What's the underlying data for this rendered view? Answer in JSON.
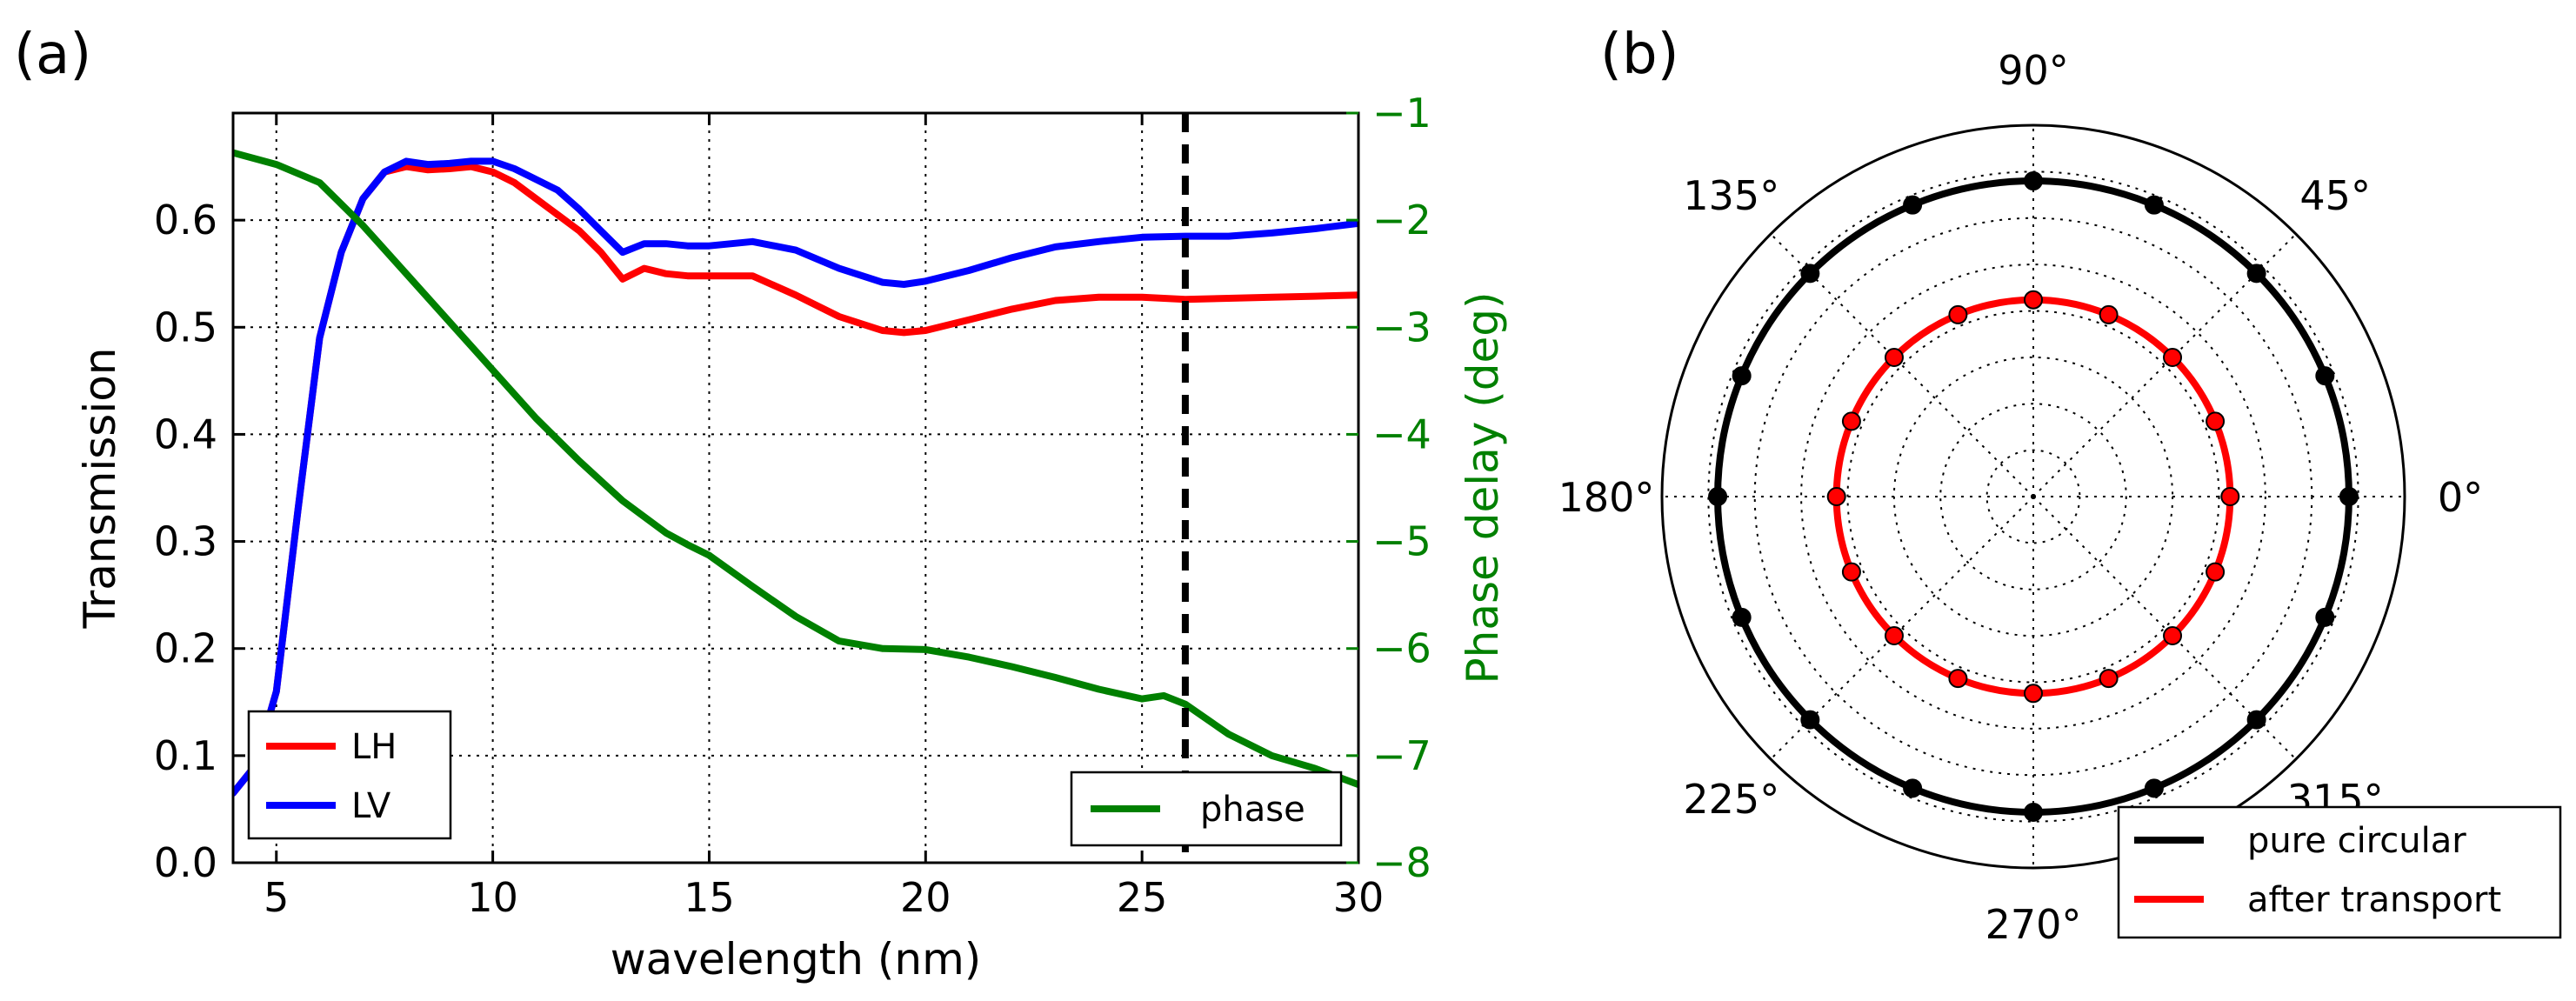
{
  "figure": {
    "panel_a_label": "(a)",
    "panel_b_label": "(b)"
  },
  "colors": {
    "lh": "#ff0000",
    "lv": "#0000ff",
    "phase": "#008000",
    "circular": "#000000",
    "transport": "#ff0000",
    "marker_stroke": "#000000"
  },
  "chart_data": [
    {
      "type": "line",
      "title": "(a)",
      "xlabel": "wavelength (nm)",
      "ylabel": "Transmission",
      "y2label": "Phase delay (deg)",
      "xlim": [
        4,
        30
      ],
      "ylim": [
        0,
        0.7
      ],
      "y2lim": [
        -8,
        -1
      ],
      "xticks": [
        5,
        10,
        15,
        20,
        25,
        30
      ],
      "xtick_labels": [
        "5",
        "10",
        "15",
        "20",
        "25",
        "30"
      ],
      "yticks": [
        0.0,
        0.1,
        0.2,
        0.3,
        0.4,
        0.5,
        0.6
      ],
      "ytick_labels": [
        "0.0",
        "0.1",
        "0.2",
        "0.3",
        "0.4",
        "0.5",
        "0.6"
      ],
      "y2ticks": [
        -8,
        -7,
        -6,
        -5,
        -4,
        -3,
        -2,
        -1
      ],
      "y2tick_labels": [
        "−8",
        "−7",
        "−6",
        "−5",
        "−4",
        "−3",
        "−2",
        "−1"
      ],
      "grid": true,
      "vline": {
        "x": 26,
        "style": "dashed"
      },
      "series": [
        {
          "name": "LH",
          "axis": "left",
          "color": "#ff0000",
          "x": [
            4,
            4.5,
            5,
            5.5,
            6,
            6.5,
            7,
            7.5,
            8,
            8.5,
            9,
            9.5,
            10,
            10.5,
            11,
            11.5,
            12,
            12.5,
            13,
            13.5,
            14,
            14.5,
            15,
            16,
            17,
            18,
            19,
            19.5,
            20,
            21,
            22,
            23,
            24,
            25,
            26,
            27,
            28,
            29,
            30
          ],
          "values": [
            0.065,
            0.09,
            0.16,
            0.33,
            0.49,
            0.57,
            0.62,
            0.645,
            0.65,
            0.647,
            0.648,
            0.65,
            0.645,
            0.635,
            0.62,
            0.605,
            0.59,
            0.57,
            0.545,
            0.555,
            0.55,
            0.548,
            0.548,
            0.548,
            0.53,
            0.51,
            0.497,
            0.495,
            0.497,
            0.507,
            0.517,
            0.525,
            0.528,
            0.528,
            0.526,
            0.527,
            0.528,
            0.529,
            0.53
          ]
        },
        {
          "name": "LV",
          "axis": "left",
          "color": "#0000ff",
          "x": [
            4,
            4.5,
            5,
            5.5,
            6,
            6.5,
            7,
            7.5,
            8,
            8.5,
            9,
            9.5,
            10,
            10.5,
            11,
            11.5,
            12,
            12.5,
            13,
            13.5,
            14,
            14.5,
            15,
            16,
            17,
            18,
            19,
            19.5,
            20,
            21,
            22,
            23,
            24,
            25,
            26,
            27,
            28,
            29,
            30
          ],
          "values": [
            0.065,
            0.09,
            0.16,
            0.33,
            0.49,
            0.57,
            0.62,
            0.645,
            0.655,
            0.652,
            0.653,
            0.655,
            0.655,
            0.648,
            0.638,
            0.628,
            0.61,
            0.59,
            0.57,
            0.578,
            0.578,
            0.576,
            0.576,
            0.58,
            0.572,
            0.555,
            0.542,
            0.54,
            0.543,
            0.553,
            0.565,
            0.575,
            0.58,
            0.584,
            0.585,
            0.585,
            0.588,
            0.592,
            0.597
          ]
        },
        {
          "name": "phase",
          "axis": "right",
          "color": "#008000",
          "x": [
            4,
            5,
            6,
            7,
            8,
            9,
            10,
            11,
            12,
            13,
            14,
            14.5,
            15,
            16,
            17,
            18,
            19,
            20,
            21,
            22,
            23,
            24,
            25,
            25.5,
            26,
            27,
            28,
            29,
            30
          ],
          "values": [
            -1.37,
            -1.48,
            -1.65,
            -2.05,
            -2.5,
            -2.95,
            -3.4,
            -3.85,
            -4.25,
            -4.62,
            -4.92,
            -5.03,
            -5.13,
            -5.42,
            -5.7,
            -5.93,
            -6.0,
            -6.01,
            -6.08,
            -6.17,
            -6.27,
            -6.38,
            -6.47,
            -6.44,
            -6.52,
            -6.8,
            -7.0,
            -7.12,
            -7.27
          ]
        }
      ],
      "legends": [
        {
          "position": "lower-left",
          "entries": [
            "LH",
            "LV"
          ]
        },
        {
          "position": "lower-right",
          "entries": [
            "phase"
          ]
        }
      ]
    },
    {
      "type": "polar",
      "title": "(b)",
      "theta_labels": [
        "0°",
        "45°",
        "90°",
        "135°",
        "180°",
        "225°",
        "270°",
        "315°"
      ],
      "theta_ticks_deg": [
        0,
        45,
        90,
        135,
        180,
        225,
        270,
        315
      ],
      "rlim": [
        0,
        1
      ],
      "rgrid": [
        0.125,
        0.25,
        0.375,
        0.5,
        0.625,
        0.75,
        0.875
      ],
      "grid": true,
      "series": [
        {
          "name": "pure circular",
          "color": "#000000",
          "radius": 0.85,
          "marker_count": 16
        },
        {
          "name": "after transport",
          "color": "#ff0000",
          "radius": 0.53,
          "marker_count": 16
        }
      ],
      "legend": {
        "position": "lower-right",
        "entries": [
          "pure circular",
          "after transport"
        ]
      }
    }
  ]
}
